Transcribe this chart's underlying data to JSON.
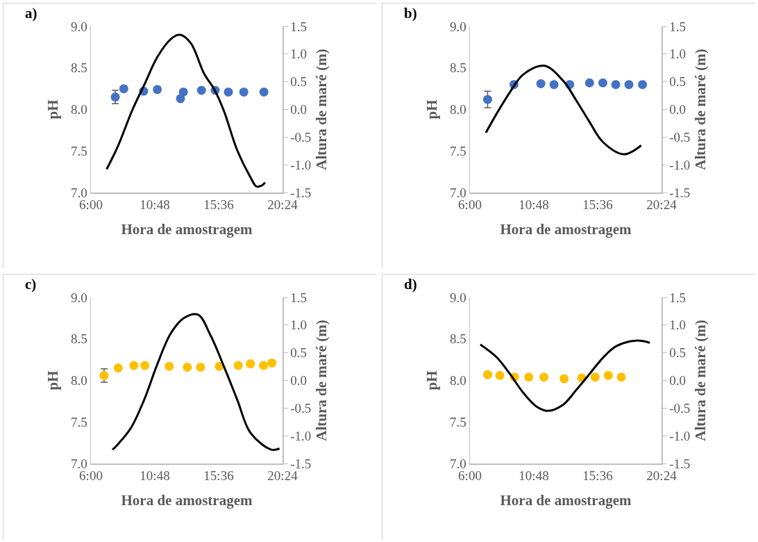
{
  "chart_data": [
    {
      "type": "scatter",
      "title": "a)",
      "xlabel": "Hora de amostragem",
      "ylabel": "pH",
      "y2label": "Altura de maré (m)",
      "grid": false,
      "xlim": [
        6,
        20.4
      ],
      "xticks": [
        {
          "value": 6,
          "label": "6:00"
        },
        {
          "value": 10.8,
          "label": "10:48"
        },
        {
          "value": 15.6,
          "label": "15:36"
        },
        {
          "value": 20.4,
          "label": "20:24"
        }
      ],
      "ylim": [
        7,
        9
      ],
      "yticks": [
        {
          "value": 7,
          "label": "7.0"
        },
        {
          "value": 7.5,
          "label": "7.5"
        },
        {
          "value": 8,
          "label": "8.0"
        },
        {
          "value": 8.5,
          "label": "8.5"
        },
        {
          "value": 9,
          "label": "9.0"
        }
      ],
      "y2lim": [
        -1.5,
        1.5
      ],
      "y2ticks": [
        -1.5,
        {
          "value": -1,
          "label": "-1.0"
        },
        -0.5,
        {
          "value": 0,
          "label": "0.0"
        },
        0.5,
        {
          "value": 1,
          "label": "1.0"
        },
        1.5
      ],
      "series": [
        {
          "marker": "circle",
          "color": "#4472c4",
          "x": [
            7.83,
            8.47,
            9.96,
            10.99,
            12.73,
            12.95,
            14.31,
            15.34,
            16.33,
            17.49,
            19.0
          ],
          "values": [
            8.15,
            8.25,
            8.22,
            8.24,
            8.13,
            8.21,
            8.23,
            8.23,
            8.21,
            8.21,
            8.21
          ],
          "errors": [
            0.08,
            null,
            null,
            null,
            null,
            null,
            null,
            null,
            null,
            null,
            null
          ]
        },
        {
          "type": "line",
          "line_style": "solid",
          "color": "#000000",
          "axis": "y2",
          "x": [
            7.18,
            8.0,
            9.13,
            10.0,
            11.0,
            12.0,
            12.69,
            13.5,
            14.5,
            15.3,
            16.0,
            17.0,
            18.0,
            18.43,
            18.8,
            19.09
          ],
          "values": [
            -1.08,
            -0.68,
            0.0,
            0.44,
            0.95,
            1.27,
            1.35,
            1.2,
            0.65,
            0.35,
            -0.03,
            -0.74,
            -1.23,
            -1.39,
            -1.38,
            -1.32
          ]
        }
      ]
    },
    {
      "type": "scatter",
      "title": "b)",
      "xlabel": "Hora de amostragem",
      "ylabel": "pH",
      "y2label": "Altura de maré (m)",
      "grid": false,
      "xlim": [
        6,
        20.4
      ],
      "xticks": [
        {
          "value": 6,
          "label": "6:00"
        },
        {
          "value": 10.8,
          "label": "10:48"
        },
        {
          "value": 15.6,
          "label": "15:36"
        },
        {
          "value": 20.4,
          "label": "20:24"
        }
      ],
      "ylim": [
        7,
        9
      ],
      "yticks": [
        {
          "value": 7,
          "label": "7.0"
        },
        {
          "value": 7.5,
          "label": "7.5"
        },
        {
          "value": 8,
          "label": "8.0"
        },
        {
          "value": 8.5,
          "label": "8.5"
        },
        {
          "value": 9,
          "label": "9.0"
        }
      ],
      "y2lim": [
        -1.5,
        1.5
      ],
      "y2ticks": [
        -1.5,
        {
          "value": -1,
          "label": "-1.0"
        },
        -0.5,
        {
          "value": 0,
          "label": "0.0"
        },
        0.5,
        {
          "value": 1,
          "label": "1.0"
        },
        1.5
      ],
      "series": [
        {
          "marker": "circle",
          "color": "#4472c4",
          "x": [
            7.33,
            9.31,
            11.33,
            12.32,
            13.5,
            14.99,
            15.99,
            16.96,
            17.95,
            18.97
          ],
          "values": [
            8.12,
            8.3,
            8.31,
            8.3,
            8.3,
            8.32,
            8.32,
            8.3,
            8.3,
            8.3
          ],
          "errors": [
            0.1,
            null,
            null,
            null,
            null,
            null,
            null,
            null,
            null,
            null
          ]
        },
        {
          "type": "line",
          "line_style": "solid",
          "color": "#000000",
          "axis": "y2",
          "x": [
            7.2,
            8.0,
            9.0,
            10.0,
            11.59,
            13.0,
            14.0,
            15.0,
            16.0,
            17.57,
            18.87
          ],
          "values": [
            -0.42,
            -0.08,
            0.31,
            0.63,
            0.79,
            0.52,
            0.16,
            -0.23,
            -0.59,
            -0.81,
            -0.65
          ]
        }
      ]
    },
    {
      "type": "scatter",
      "title": "c)",
      "xlabel": "Hora de amostragem",
      "ylabel": "pH",
      "y2label": "Altura de maré (m)",
      "grid": false,
      "xlim": [
        6,
        20.4
      ],
      "xticks": [
        {
          "value": 6,
          "label": "6:00"
        },
        {
          "value": 10.8,
          "label": "10:48"
        },
        {
          "value": 15.6,
          "label": "15:36"
        },
        {
          "value": 20.4,
          "label": "20:24"
        }
      ],
      "ylim": [
        7,
        9
      ],
      "yticks": [
        {
          "value": 7,
          "label": "7.0"
        },
        {
          "value": 7.5,
          "label": "7.5"
        },
        {
          "value": 8,
          "label": "8.0"
        },
        {
          "value": 8.5,
          "label": "8.5"
        },
        {
          "value": 9,
          "label": "9.0"
        }
      ],
      "y2lim": [
        -1.5,
        1.5
      ],
      "y2ticks": [
        -1.5,
        {
          "value": -1,
          "label": "-1.0"
        },
        -0.5,
        {
          "value": 0,
          "label": "0.0"
        },
        0.5,
        {
          "value": 1,
          "label": "1.0"
        },
        1.5
      ],
      "series": [
        {
          "marker": "circle",
          "color": "#ffc000",
          "x": [
            6.99,
            8.05,
            9.23,
            10.05,
            11.88,
            13.24,
            14.24,
            15.65,
            17.07,
            17.99,
            18.97,
            19.6
          ],
          "values": [
            8.06,
            8.15,
            8.18,
            8.18,
            8.17,
            8.16,
            8.16,
            8.17,
            8.18,
            8.2,
            8.18,
            8.21
          ],
          "errors": [
            0.08,
            null,
            null,
            null,
            null,
            null,
            null,
            null,
            null,
            null,
            null,
            null
          ]
        },
        {
          "type": "line",
          "line_style": "solid",
          "color": "#000000",
          "axis": "y2",
          "x": [
            7.62,
            8.0,
            9.0,
            10.0,
            11.0,
            12.0,
            13.0,
            14.03,
            15.0,
            16.0,
            17.0,
            18.0,
            19.56,
            20.17
          ],
          "values": [
            -1.25,
            -1.16,
            -0.86,
            -0.35,
            0.3,
            0.85,
            1.13,
            1.19,
            0.81,
            0.25,
            -0.35,
            -0.95,
            -1.25,
            -1.23
          ]
        }
      ]
    },
    {
      "type": "scatter",
      "title": "d)",
      "xlabel": "Hora de amostragem",
      "ylabel": "pH",
      "y2label": "Altura de maré (m)",
      "grid": false,
      "xlim": [
        6,
        20.4
      ],
      "xticks": [
        {
          "value": 6,
          "label": "6:00"
        },
        {
          "value": 10.8,
          "label": "10:48"
        },
        {
          "value": 15.6,
          "label": "15:36"
        },
        {
          "value": 20.4,
          "label": "20:24"
        }
      ],
      "ylim": [
        7,
        9
      ],
      "yticks": [
        {
          "value": 7,
          "label": "7.0"
        },
        {
          "value": 7.5,
          "label": "7.5"
        },
        {
          "value": 8,
          "label": "8.0"
        },
        {
          "value": 8.5,
          "label": "8.5"
        },
        {
          "value": 9,
          "label": "9.0"
        }
      ],
      "y2lim": [
        -1.5,
        1.5
      ],
      "y2ticks": [
        -1.5,
        {
          "value": -1,
          "label": "-1.0"
        },
        -0.5,
        {
          "value": 0,
          "label": "0.0"
        },
        0.5,
        {
          "value": 1,
          "label": "1.0"
        },
        1.5
      ],
      "series": [
        {
          "marker": "circle",
          "color": "#ffc000",
          "x": [
            7.33,
            8.25,
            9.34,
            10.42,
            11.56,
            13.08,
            14.4,
            15.41,
            16.4,
            17.38
          ],
          "values": [
            8.07,
            8.06,
            8.04,
            8.04,
            8.04,
            8.02,
            8.03,
            8.04,
            8.06,
            8.04
          ]
        },
        {
          "type": "line",
          "line_style": "solid",
          "color": "#000000",
          "axis": "y2",
          "x": [
            6.78,
            8.0,
            9.0,
            10.0,
            11.0,
            11.85,
            13.0,
            14.0,
            15.0,
            16.0,
            17.0,
            18.49,
            19.53
          ],
          "values": [
            0.65,
            0.42,
            0.12,
            -0.22,
            -0.47,
            -0.55,
            -0.44,
            -0.17,
            0.12,
            0.41,
            0.62,
            0.72,
            0.68
          ]
        }
      ]
    }
  ]
}
